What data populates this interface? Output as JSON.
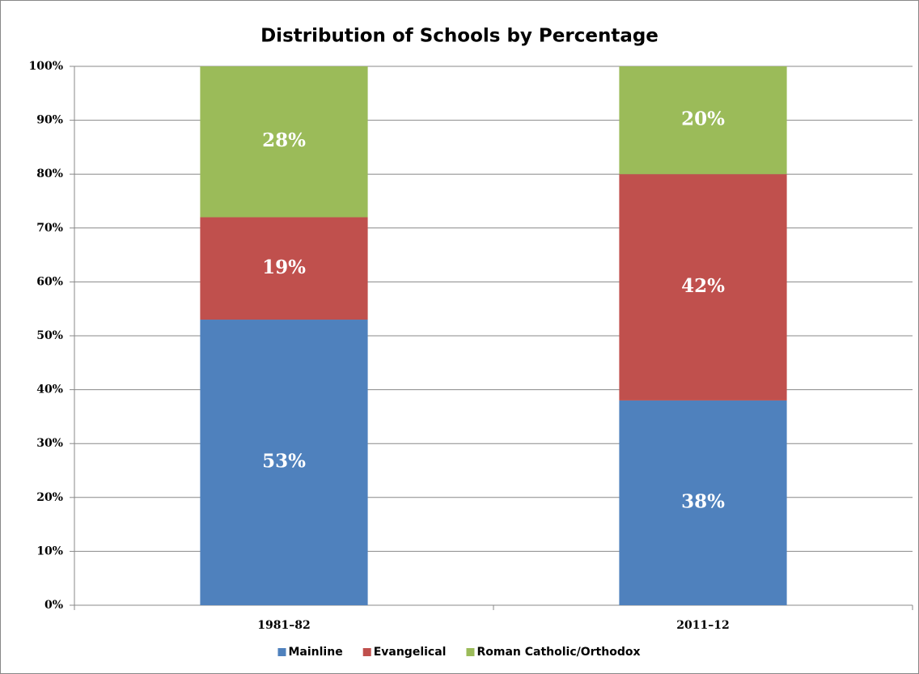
{
  "chart_data": {
    "type": "stacked_bar",
    "title": "Distribution of Schools by Percentage",
    "categories": [
      "1981–82",
      "2011–12"
    ],
    "series": [
      {
        "name": "Mainline",
        "color": "#4f81bd",
        "values": [
          53,
          38
        ],
        "value_labels": [
          "53%",
          "38%"
        ]
      },
      {
        "name": "Evangelical",
        "color": "#c0504d",
        "values": [
          19,
          42
        ],
        "value_labels": [
          "19%",
          "42%"
        ]
      },
      {
        "name": "Roman Catholic/Orthodox",
        "color": "#9bbb59",
        "values": [
          28,
          20
        ],
        "value_labels": [
          "28%",
          "20%"
        ]
      }
    ],
    "ylim": [
      0,
      100
    ],
    "yticks": [
      {
        "value": 0,
        "label": "0%"
      },
      {
        "value": 10,
        "label": "10%"
      },
      {
        "value": 20,
        "label": "20%"
      },
      {
        "value": 30,
        "label": "30%"
      },
      {
        "value": 40,
        "label": "40%"
      },
      {
        "value": 50,
        "label": "50%"
      },
      {
        "value": 60,
        "label": "60%"
      },
      {
        "value": 70,
        "label": "70%"
      },
      {
        "value": 80,
        "label": "80%"
      },
      {
        "value": 90,
        "label": "90%"
      },
      {
        "value": 100,
        "label": "100%"
      }
    ],
    "grid": true,
    "legend": "bottom"
  }
}
